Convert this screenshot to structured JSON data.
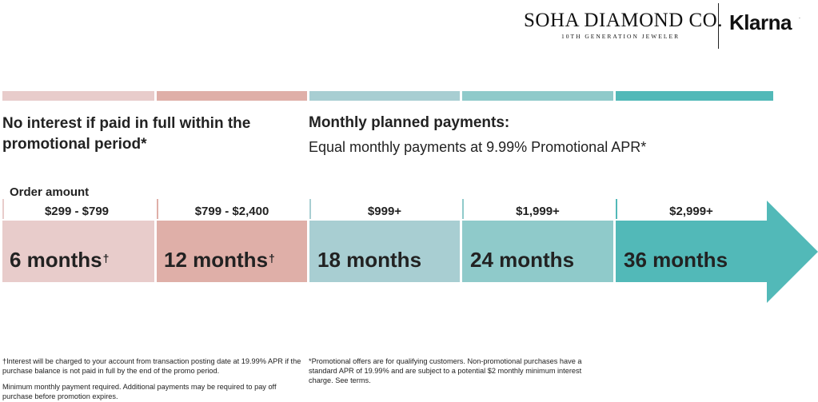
{
  "header": {
    "brand_title": "SOHA DIAMOND CO.",
    "brand_subtitle": "10TH GENERATION JEWELER",
    "partner_logo": "Klarna",
    "partner_logo_mark": "."
  },
  "colors": {
    "pink_light": "#e8cccb",
    "pink_dark": "#dfafa8",
    "teal_light": "#a8ced2",
    "teal_mid": "#8fcaca",
    "teal_dark": "#52b9b8"
  },
  "left_heading": "No interest if paid in full within the promotional period*",
  "right_heading": "Monthly planned payments:",
  "right_subheading": "Equal monthly payments at 9.99% Promotional APR*",
  "order_amount_label": "Order amount",
  "tiers": [
    {
      "range": "$299 - $799",
      "term": "6 months",
      "mark": "†"
    },
    {
      "range": "$799 - $2,400",
      "term": "12 months",
      "mark": "†"
    },
    {
      "range": "$999+",
      "term": "18 months",
      "mark": ""
    },
    {
      "range": "$1,999+",
      "term": "24 months",
      "mark": ""
    },
    {
      "range": "$2,999+",
      "term": "36 months",
      "mark": ""
    }
  ],
  "footnotes": {
    "interest_note": "†Interest will be charged to your account from transaction posting date at 19.99% APR if the purchase balance is not paid in full by the end of the promo period.",
    "minimum_note": "Minimum monthly payment required. Additional payments may be required to pay off purchase before promotion expires.",
    "promo_note": "*Promotional offers are for qualifying customers. Non-promotional purchases have a standard APR of 19.99% and are subject to a potential $2 monthly minimum interest charge. See terms."
  }
}
